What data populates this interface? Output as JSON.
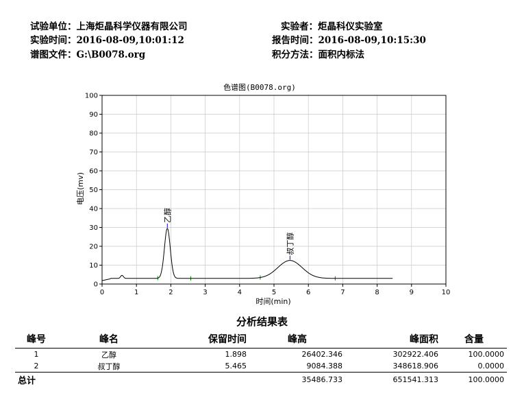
{
  "header": {
    "unit_label": "试验单位：",
    "unit_value": "上海炬晶科学仪器有限公司",
    "experimenter_label": "实验者：",
    "experimenter_value": "炬晶科仪实验室",
    "exp_time_label": "实验时间：",
    "exp_time_value": "2016-08-09,10:01:12",
    "report_time_label": "报告时间：",
    "report_time_value": "2016-08-09,10:15:30",
    "file_label": "谱图文件：",
    "file_value": "G:\\B0078.org",
    "integration_label": "积分方法：",
    "integration_value": "面积内标法"
  },
  "chart_data": {
    "type": "line",
    "title": "色谱图(B0078.org)",
    "xlabel": "时间(min)",
    "ylabel": "电压(mv)",
    "xlim": [
      0,
      10
    ],
    "ylim": [
      0,
      100
    ],
    "xticks": [
      "0",
      "1",
      "2",
      "3",
      "4",
      "5",
      "6",
      "7",
      "8",
      "9",
      "10"
    ],
    "yticks": [
      "0",
      "10",
      "20",
      "30",
      "40",
      "50",
      "60",
      "70",
      "80",
      "90",
      "100"
    ],
    "baseline": 3,
    "x_end": 8.45,
    "peaks": [
      {
        "name": "乙醇",
        "rt": 1.898,
        "height": 29.5
      },
      {
        "name": "叔丁醇",
        "rt": 5.465,
        "height": 12.5
      }
    ],
    "noise": [
      {
        "x": 0.58,
        "y": 4.6
      }
    ],
    "markers": [
      1.62,
      2.58,
      4.6,
      6.78
    ],
    "colors": {
      "line": "#000000",
      "label": "#0000cc",
      "marker": "#008000"
    }
  },
  "results": {
    "title": "分析结果表",
    "headers": [
      "峰号",
      "峰名",
      "保留时间",
      "峰高",
      "峰面积",
      "含量"
    ],
    "rows": [
      [
        "1",
        "乙醇",
        "1.898",
        "26402.346",
        "302922.406",
        "100.0000"
      ],
      [
        "2",
        "叔丁醇",
        "5.465",
        "9084.388",
        "348618.906",
        "0.0000"
      ]
    ],
    "total": [
      "总计",
      "",
      "",
      "35486.733",
      "651541.313",
      "100.0000"
    ]
  }
}
